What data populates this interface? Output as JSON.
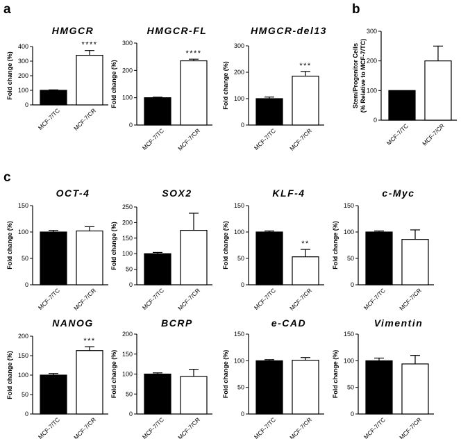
{
  "panel_letters": [
    "a",
    "b",
    "c"
  ],
  "chart_data": [
    {
      "id": "hmgcr",
      "panel": "a",
      "type": "bar",
      "title": "HMGCR",
      "ylabel": "Fold change (%)",
      "categories": [
        "MCF-7/TC",
        "MCF-7/CR"
      ],
      "values": [
        100,
        340
      ],
      "errors": [
        3,
        33
      ],
      "ylim": [
        0,
        400
      ],
      "yticks": [
        0,
        100,
        200,
        300,
        400
      ],
      "fills": [
        "#000000",
        "#ffffff"
      ],
      "annotations": [
        "",
        "****"
      ]
    },
    {
      "id": "hmgcr-fl",
      "panel": "a",
      "type": "bar",
      "title": "HMGCR-FL",
      "ylabel": "Fold change (%)",
      "categories": [
        "MCF-7/TC",
        "MCF-7/CR"
      ],
      "values": [
        100,
        235
      ],
      "errors": [
        2,
        6
      ],
      "ylim": [
        0,
        300
      ],
      "yticks": [
        0,
        100,
        200,
        300
      ],
      "fills": [
        "#000000",
        "#ffffff"
      ],
      "annotations": [
        "",
        "****"
      ]
    },
    {
      "id": "hmgcr-del13",
      "panel": "a",
      "type": "bar",
      "title": "HMGCR-del13",
      "ylabel": "Fold change (%)",
      "categories": [
        "MCF-7/TC",
        "MCF-7/CR"
      ],
      "values": [
        100,
        185
      ],
      "errors": [
        6,
        18
      ],
      "ylim": [
        0,
        300
      ],
      "yticks": [
        0,
        100,
        200,
        300
      ],
      "fills": [
        "#000000",
        "#ffffff"
      ],
      "annotations": [
        "",
        "***"
      ]
    },
    {
      "id": "stem",
      "panel": "b",
      "type": "bar",
      "title": "",
      "ylabel": "Stem/Progenitor Cells (% Relative to MCF-7/TC)",
      "ylabel_lines": [
        "Stem/Progenitor Cells",
        "(% Relative to MCF-7/TC)"
      ],
      "categories": [
        "MCF-7/TC",
        "MCF-7/CR"
      ],
      "values": [
        100,
        200
      ],
      "errors": [
        0,
        50
      ],
      "ylim": [
        0,
        300
      ],
      "yticks": [
        0,
        100,
        200,
        300
      ],
      "fills": [
        "#000000",
        "#ffffff"
      ],
      "annotations": [
        "",
        ""
      ]
    },
    {
      "id": "oct4",
      "panel": "c",
      "type": "bar",
      "title": "OCT-4",
      "ylabel": "Fold change (%)",
      "categories": [
        "MCF-7/TC",
        "MCF-7/CR"
      ],
      "values": [
        100,
        102
      ],
      "errors": [
        3,
        8
      ],
      "ylim": [
        0,
        150
      ],
      "yticks": [
        0,
        50,
        100,
        150
      ],
      "fills": [
        "#000000",
        "#ffffff"
      ],
      "annotations": [
        "",
        ""
      ]
    },
    {
      "id": "sox2",
      "panel": "c",
      "type": "bar",
      "title": "SOX2",
      "ylabel": "Fold change (%)",
      "categories": [
        "MCF-7/TC",
        "MCF-7/CR"
      ],
      "values": [
        100,
        175
      ],
      "errors": [
        4,
        55
      ],
      "ylim": [
        0,
        250
      ],
      "yticks": [
        0,
        50,
        100,
        150,
        200,
        250
      ],
      "fills": [
        "#000000",
        "#ffffff"
      ],
      "annotations": [
        "",
        ""
      ]
    },
    {
      "id": "klf4",
      "panel": "c",
      "type": "bar",
      "title": "KLF-4",
      "ylabel": "Fold change (%)",
      "categories": [
        "MCF-7/TC",
        "MCF-7/CR"
      ],
      "values": [
        100,
        53
      ],
      "errors": [
        2,
        14
      ],
      "ylim": [
        0,
        150
      ],
      "yticks": [
        0,
        50,
        100,
        150
      ],
      "fills": [
        "#000000",
        "#ffffff"
      ],
      "annotations": [
        "",
        "**"
      ]
    },
    {
      "id": "cmyc",
      "panel": "c",
      "type": "bar",
      "title": "c-Myc",
      "ylabel": "Fold change (%)",
      "categories": [
        "MCF-7/TC",
        "MCF-7/CR"
      ],
      "values": [
        100,
        86
      ],
      "errors": [
        2,
        18
      ],
      "ylim": [
        0,
        150
      ],
      "yticks": [
        0,
        50,
        100,
        150
      ],
      "fills": [
        "#000000",
        "#ffffff"
      ],
      "annotations": [
        "",
        ""
      ]
    },
    {
      "id": "nanog",
      "panel": "c",
      "type": "bar",
      "title": "NANOG",
      "ylabel": "Fold change (%)",
      "categories": [
        "MCF-7/TC",
        "MCF-7/CR"
      ],
      "values": [
        100,
        163
      ],
      "errors": [
        4,
        10
      ],
      "ylim": [
        0,
        200
      ],
      "yticks": [
        0,
        50,
        100,
        150,
        200
      ],
      "fills": [
        "#000000",
        "#ffffff"
      ],
      "annotations": [
        "",
        "***"
      ]
    },
    {
      "id": "bcrp",
      "panel": "c",
      "type": "bar",
      "title": "BCRP",
      "ylabel": "Fold change (%)",
      "categories": [
        "MCF-7/TC",
        "MCF-7/CR"
      ],
      "values": [
        100,
        94
      ],
      "errors": [
        3,
        18
      ],
      "ylim": [
        0,
        200
      ],
      "yticks": [
        0,
        50,
        100,
        150,
        200
      ],
      "fills": [
        "#000000",
        "#ffffff"
      ],
      "annotations": [
        "",
        ""
      ]
    },
    {
      "id": "ecad",
      "panel": "c",
      "type": "bar",
      "title": "e-CAD",
      "ylabel": "Fold change (%)",
      "categories": [
        "MCF-7/TC",
        "MCF-7/CR"
      ],
      "values": [
        100,
        101
      ],
      "errors": [
        2,
        5
      ],
      "ylim": [
        0,
        150
      ],
      "yticks": [
        0,
        50,
        100,
        150
      ],
      "fills": [
        "#000000",
        "#ffffff"
      ],
      "annotations": [
        "",
        ""
      ]
    },
    {
      "id": "vimentin",
      "panel": "c",
      "type": "bar",
      "title": "Vimentin",
      "ylabel": "Fold change (%)",
      "categories": [
        "MCF-7/TC",
        "MCF-7/CR"
      ],
      "values": [
        100,
        94
      ],
      "errors": [
        5,
        16
      ],
      "ylim": [
        0,
        150
      ],
      "yticks": [
        0,
        50,
        100,
        150
      ],
      "fills": [
        "#000000",
        "#ffffff"
      ],
      "annotations": [
        "",
        ""
      ]
    }
  ]
}
